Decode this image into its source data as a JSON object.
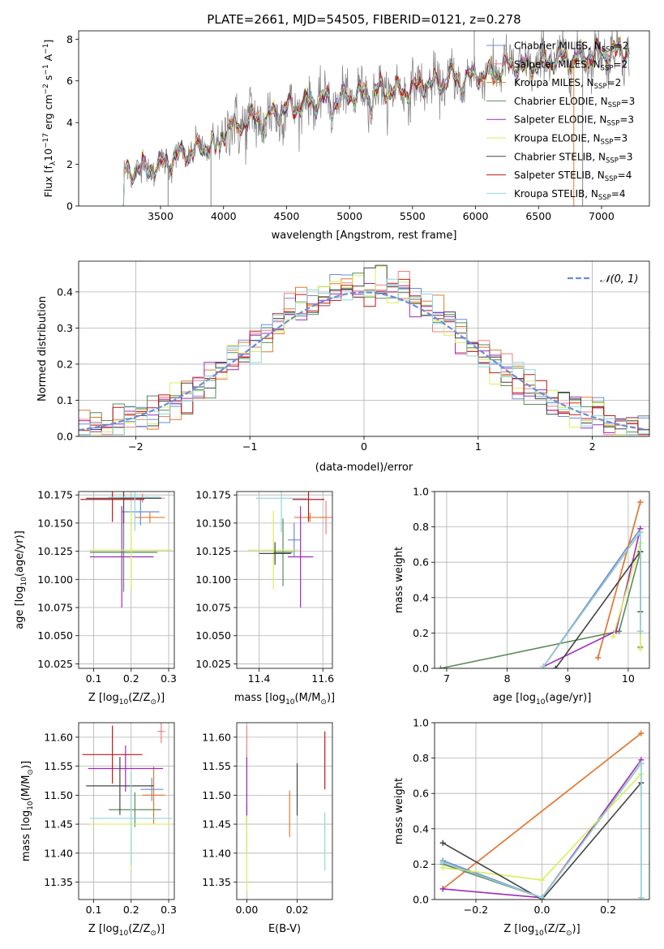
{
  "figure": {
    "title": "PLATE=2661, MJD=54505, FIBERID=0121, z=0.278",
    "series_colors": {
      "Chabrier MILES": "#6b8cd9",
      "Salpeter MILES": "#f08080",
      "Kroupa MILES": "#e07b2e",
      "Chabrier ELODIE": "#5a8a5a",
      "Salpeter ELODIE": "#a02cb8",
      "Kroupa ELODIE": "#d8ef5a",
      "Chabrier STELIB": "#444444",
      "Salpeter STELIB": "#c01818",
      "Kroupa STELIB": "#8fd6dc"
    }
  },
  "chart_data": [
    {
      "id": "spectrum",
      "type": "line",
      "xlabel": "wavelength [Angstrom, rest frame]",
      "ylabel": "Flux [f",
      "ylabel_parts": [
        "Flux [f",
        "λ",
        "10",
        "−17",
        " erg cm",
        "−2",
        " s",
        "−1",
        " A",
        "−1",
        "]"
      ],
      "xlim": [
        2850,
        7380
      ],
      "ylim": [
        0,
        8.4
      ],
      "xticks": [
        3500,
        4000,
        4500,
        5000,
        5500,
        6000,
        6500,
        7000
      ],
      "yticks": [
        0,
        2,
        4,
        6,
        8
      ],
      "grid": false,
      "legend_position": "top-right",
      "legend": [
        {
          "color": "#6b8cd9",
          "label": "Chabrier MILES, N",
          "sub": "SSP",
          "tail": "=2"
        },
        {
          "color": "#f08080",
          "label": "Salpeter MILES, N",
          "sub": "SSP",
          "tail": "=2"
        },
        {
          "color": "#e07b2e",
          "label": "Kroupa MILES, N",
          "sub": "SSP",
          "tail": "=2"
        },
        {
          "color": "#5a8a5a",
          "label": "Chabrier ELODIE, N",
          "sub": "SSP",
          "tail": "=3"
        },
        {
          "color": "#a02cb8",
          "label": "Salpeter ELODIE, N",
          "sub": "SSP",
          "tail": "=3"
        },
        {
          "color": "#d8ef5a",
          "label": "Kroupa ELODIE, N",
          "sub": "SSP",
          "tail": "=3"
        },
        {
          "color": "#444444",
          "label": "Chabrier STELIB, N",
          "sub": "SSP",
          "tail": "=3"
        },
        {
          "color": "#c01818",
          "label": "Salpeter STELIB, N",
          "sub": "SSP",
          "tail": "=4"
        },
        {
          "color": "#8fd6dc",
          "label": "Kroupa STELIB, N",
          "sub": "SSP",
          "tail": "=4"
        }
      ],
      "data_line_color": "#888888",
      "continuum_knots": {
        "x": [
          3200,
          3250,
          3350,
          3500,
          3600,
          3700,
          3800,
          3900,
          4000,
          4050,
          4150,
          4250,
          4300,
          4400,
          4500,
          4600,
          4700,
          4800,
          4900,
          5000,
          5100,
          5200,
          5300,
          5400,
          5500,
          5600,
          5700,
          5800,
          5900,
          6000,
          6100,
          6200,
          6300,
          6400,
          6500,
          6600,
          6700,
          6800,
          6900,
          7000,
          7100,
          7200
        ],
        "y": [
          1.5,
          1.7,
          1.8,
          1.9,
          2.3,
          2.5,
          2.7,
          3.0,
          3.6,
          3.8,
          4.0,
          4.2,
          4.3,
          4.4,
          4.7,
          4.8,
          5.0,
          5.1,
          5.0,
          5.3,
          5.4,
          5.5,
          5.6,
          5.5,
          5.6,
          5.9,
          5.8,
          6.2,
          6.0,
          6.3,
          6.3,
          6.6,
          6.8,
          6.6,
          6.9,
          7.0,
          7.1,
          7.1,
          7.2,
          7.3,
          7.4,
          7.4
        ]
      }
    },
    {
      "id": "residuals",
      "type": "histogram",
      "xlabel": "(data-model)/error",
      "ylabel": "Normed distribution",
      "xlim": [
        -2.5,
        2.5
      ],
      "ylim": [
        0,
        0.485
      ],
      "xticks": [
        -2,
        -1,
        0,
        1,
        2
      ],
      "yticks": [
        0.0,
        0.1,
        0.2,
        0.3,
        0.4
      ],
      "grid": true,
      "legend_position": "top-right",
      "legend": [
        {
          "label": "𝒩(0, 1)",
          "color": "#6b8cd9",
          "style": "dashed"
        }
      ],
      "bin_width": 0.1,
      "reference_curve": "gaussian mean 0 sigma 1"
    },
    {
      "id": "age_vs_Z",
      "type": "errorbar",
      "xlabel": "Z [log",
      "ylabel": "age  [log",
      "xlabel_parts": [
        "Z [log",
        "10",
        "(Z/Z",
        "⊙",
        ")]"
      ],
      "ylabel_parts": [
        "age  [log",
        "10",
        "(age/yr)]"
      ],
      "xlim": [
        0.06,
        0.315
      ],
      "ylim": [
        10.021,
        10.178
      ],
      "xticks": [
        0.1,
        0.2,
        0.3
      ],
      "yticks": [
        10.025,
        10.05,
        10.075,
        10.1,
        10.125,
        10.15,
        10.175
      ],
      "grid": true,
      "points": [
        {
          "color": "#6b8cd9",
          "x": 0.225,
          "xerr": 0.05,
          "y": 10.16,
          "yerr": 0.012
        },
        {
          "color": "#f08080",
          "x": 0.23,
          "xerr": 0.06,
          "y": 10.172,
          "yerr": 0.004
        },
        {
          "color": "#e07b2e",
          "x": 0.25,
          "xerr": 0.04,
          "y": 10.155,
          "yerr": 0.005
        },
        {
          "color": "#5a8a5a",
          "x": 0.18,
          "xerr": 0.09,
          "y": 10.124,
          "yerr": 0.035
        },
        {
          "color": "#a02cb8",
          "x": 0.175,
          "xerr": 0.085,
          "y": 10.12,
          "yerr": 0.045
        },
        {
          "color": "#d8ef5a",
          "x": 0.2,
          "xerr": 0.11,
          "y": 10.126,
          "yerr": 0.035
        },
        {
          "color": "#444444",
          "x": 0.18,
          "xerr": 0.1,
          "y": 10.172,
          "yerr": 0.022
        },
        {
          "color": "#c01818",
          "x": 0.15,
          "xerr": 0.085,
          "y": 10.171,
          "yerr": 0.02
        },
        {
          "color": "#8fd6dc",
          "x": 0.21,
          "xerr": 0.07,
          "y": 10.173,
          "yerr": 0.03
        }
      ]
    },
    {
      "id": "age_vs_mass",
      "type": "errorbar",
      "xlabel": "mass [log",
      "ylabel": "",
      "xlabel_parts": [
        "mass [log",
        "10",
        "(M/M",
        "⊙",
        ")]"
      ],
      "xlim": [
        11.33,
        11.63
      ],
      "ylim": [
        10.021,
        10.178
      ],
      "xticks": [
        11.4,
        11.6
      ],
      "yticks": [
        10.025,
        10.05,
        10.075,
        10.1,
        10.125,
        10.15,
        10.175
      ],
      "grid": true,
      "points": [
        {
          "color": "#6b8cd9",
          "x": 11.51,
          "xerr": 0.02,
          "y": 10.135,
          "yerr": 0.015
        },
        {
          "color": "#f08080",
          "x": 11.61,
          "xerr": 0.02,
          "y": 10.155,
          "yerr": 0.015
        },
        {
          "color": "#e07b2e",
          "x": 11.56,
          "xerr": 0.05,
          "y": 10.155,
          "yerr": 0.004
        },
        {
          "color": "#5a8a5a",
          "x": 11.475,
          "xerr": 0.03,
          "y": 10.124,
          "yerr": 0.03
        },
        {
          "color": "#a02cb8",
          "x": 11.53,
          "xerr": 0.04,
          "y": 10.12,
          "yerr": 0.045
        },
        {
          "color": "#d8ef5a",
          "x": 11.445,
          "xerr": 0.08,
          "y": 10.126,
          "yerr": 0.035
        },
        {
          "color": "#444444",
          "x": 11.45,
          "xerr": 0.05,
          "y": 10.123,
          "yerr": 0.01
        },
        {
          "color": "#c01818",
          "x": 11.555,
          "xerr": 0.05,
          "y": 10.171,
          "yerr": 0.02
        },
        {
          "color": "#8fd6dc",
          "x": 11.47,
          "xerr": 0.08,
          "y": 10.172,
          "yerr": 0.03
        }
      ]
    },
    {
      "id": "weight_vs_age",
      "type": "line",
      "xlabel": "age  [log",
      "ylabel": "mass weight",
      "xlabel_parts": [
        "age  [log",
        "10",
        "(age/yr)]"
      ],
      "xlim": [
        6.8,
        10.35
      ],
      "ylim": [
        0,
        1.0
      ],
      "xticks": [
        7,
        8,
        9,
        10
      ],
      "yticks": [
        0.0,
        0.2,
        0.4,
        0.6,
        0.8,
        1.0
      ],
      "grid": true,
      "series": [
        {
          "color": "#6b8cd9",
          "x": [
            8.6,
            10.2
          ],
          "y": [
            0.01,
            0.79
          ]
        },
        {
          "color": "#f08080",
          "x": [
            9.5,
            10.2
          ],
          "y": [
            0.06,
            0.94
          ]
        },
        {
          "color": "#e07b2e",
          "x": [
            9.5,
            10.2
          ],
          "y": [
            0.06,
            0.94
          ]
        },
        {
          "color": "#5a8a5a",
          "x": [
            6.9,
            9.85,
            10.2,
            10.2
          ],
          "y": [
            0.0,
            0.21,
            0.66,
            0.12
          ]
        },
        {
          "color": "#a02cb8",
          "x": [
            8.6,
            9.8,
            10.2
          ],
          "y": [
            0.01,
            0.21,
            0.79
          ]
        },
        {
          "color": "#d8ef5a",
          "x": [
            9.75,
            10.2,
            10.2
          ],
          "y": [
            0.18,
            0.71,
            0.11
          ]
        },
        {
          "color": "#444444",
          "x": [
            8.8,
            10.2,
            10.2
          ],
          "y": [
            0.0,
            0.66,
            0.32
          ]
        },
        {
          "color": "#c01818",
          "x": [
            8.6,
            10.2,
            10.2
          ],
          "y": [
            0.01,
            0.77,
            0.21
          ]
        },
        {
          "color": "#8fd6dc",
          "x": [
            8.6,
            10.2,
            10.2
          ],
          "y": [
            0.01,
            0.77,
            0.21
          ]
        }
      ]
    },
    {
      "id": "mass_vs_Z",
      "type": "errorbar",
      "xlabel": "Z [log",
      "ylabel": "mass [log",
      "xlabel_parts": [
        "Z [log",
        "10",
        "(Z/Z",
        "⊙",
        ")]"
      ],
      "ylabel_parts": [
        "mass [log",
        "10",
        "(M/M",
        "⊙",
        ")]"
      ],
      "xlim": [
        0.06,
        0.315
      ],
      "ylim": [
        11.32,
        11.625
      ],
      "xticks": [
        0.1,
        0.2,
        0.3
      ],
      "yticks": [
        11.35,
        11.4,
        11.45,
        11.5,
        11.55,
        11.6
      ],
      "grid": true,
      "points": [
        {
          "color": "#6b8cd9",
          "x": 0.255,
          "xerr": 0.03,
          "y": 11.51,
          "yerr": 0.02
        },
        {
          "color": "#f08080",
          "x": 0.28,
          "xerr": 0.01,
          "y": 11.61,
          "yerr": 0.02
        },
        {
          "color": "#e07b2e",
          "x": 0.26,
          "xerr": 0.03,
          "y": 11.5,
          "yerr": 0.05
        },
        {
          "color": "#5a8a5a",
          "x": 0.21,
          "xerr": 0.07,
          "y": 11.475,
          "yerr": 0.03
        },
        {
          "color": "#a02cb8",
          "x": 0.185,
          "xerr": 0.1,
          "y": 11.546,
          "yerr": 0.04
        },
        {
          "color": "#d8ef5a",
          "x": 0.2,
          "xerr": 0.11,
          "y": 11.45,
          "yerr": 0.08
        },
        {
          "color": "#444444",
          "x": 0.17,
          "xerr": 0.09,
          "y": 11.516,
          "yerr": 0.05
        },
        {
          "color": "#c01818",
          "x": 0.15,
          "xerr": 0.08,
          "y": 11.57,
          "yerr": 0.05
        },
        {
          "color": "#8fd6dc",
          "x": 0.2,
          "xerr": 0.11,
          "y": 11.46,
          "yerr": 0.08
        }
      ]
    },
    {
      "id": "mass_vs_ebv",
      "type": "errorbar",
      "xlabel": "E(B-V)",
      "ylabel": "",
      "xlim": [
        -0.004,
        0.034
      ],
      "ylim": [
        11.32,
        11.625
      ],
      "xticks": [
        0.0,
        0.02
      ],
      "yticks": [
        11.35,
        11.4,
        11.45,
        11.5,
        11.55,
        11.6
      ],
      "grid": true,
      "points": [
        {
          "color": "#6b8cd9",
          "x": 0.0,
          "xerr": 0,
          "y": 11.51,
          "yerr": 0.06
        },
        {
          "color": "#f08080",
          "x": 0.0,
          "xerr": 0,
          "y": 11.58,
          "yerr": 0.04
        },
        {
          "color": "#e07b2e",
          "x": 0.017,
          "xerr": 0,
          "y": 11.468,
          "yerr": 0.04
        },
        {
          "color": "#5a8a5a",
          "x": 0.0,
          "xerr": 0,
          "y": 11.44,
          "yerr": 0.04
        },
        {
          "color": "#a02cb8",
          "x": 0.0,
          "xerr": 0,
          "y": 11.515,
          "yerr": 0.05
        },
        {
          "color": "#d8ef5a",
          "x": 0.0,
          "xerr": 0,
          "y": 11.4,
          "yerr": 0.065
        },
        {
          "color": "#444444",
          "x": 0.02,
          "xerr": 0,
          "y": 11.51,
          "yerr": 0.045
        },
        {
          "color": "#c01818",
          "x": 0.031,
          "xerr": 0,
          "y": 11.56,
          "yerr": 0.05
        },
        {
          "color": "#8fd6dc",
          "x": 0.031,
          "xerr": 0,
          "y": 11.42,
          "yerr": 0.05
        }
      ]
    },
    {
      "id": "weight_vs_Z",
      "type": "line",
      "xlabel": "Z [log",
      "ylabel": "mass weight",
      "xlabel_parts": [
        "Z [log",
        "10",
        "(Z/Z",
        "⊙",
        ")]"
      ],
      "xlim": [
        -0.325,
        0.325
      ],
      "ylim": [
        0,
        1.0
      ],
      "xticks": [
        -0.2,
        0.0,
        0.2
      ],
      "yticks": [
        0.0,
        0.2,
        0.4,
        0.6,
        0.8,
        1.0
      ],
      "grid": true,
      "series": [
        {
          "color": "#6b8cd9",
          "x": [
            -0.3,
            0.0,
            0.3
          ],
          "y": [
            0.22,
            0.01,
            0.77
          ]
        },
        {
          "color": "#f08080",
          "x": [
            -0.3,
            0.3
          ],
          "y": [
            0.06,
            0.94
          ]
        },
        {
          "color": "#e07b2e",
          "x": [
            -0.3,
            0.3
          ],
          "y": [
            0.06,
            0.94
          ]
        },
        {
          "color": "#5a8a5a",
          "x": [
            -0.3,
            0.0,
            0.3
          ],
          "y": [
            0.2,
            0.01,
            0.77
          ]
        },
        {
          "color": "#a02cb8",
          "x": [
            -0.3,
            0.0,
            0.3
          ],
          "y": [
            0.06,
            0.01,
            0.79
          ]
        },
        {
          "color": "#d8ef5a",
          "x": [
            -0.3,
            0.0,
            0.3
          ],
          "y": [
            0.18,
            0.11,
            0.71
          ]
        },
        {
          "color": "#444444",
          "x": [
            -0.3,
            0.0,
            0.3
          ],
          "y": [
            0.32,
            0.0,
            0.66
          ]
        },
        {
          "color": "#c01818",
          "x": [
            -0.3,
            0.0,
            0.3,
            0.3
          ],
          "y": [
            0.21,
            0.01,
            0.77,
            0.01
          ]
        },
        {
          "color": "#8fd6dc",
          "x": [
            -0.3,
            0.0,
            0.3,
            0.3
          ],
          "y": [
            0.21,
            0.01,
            0.77,
            0.01
          ]
        }
      ]
    }
  ]
}
